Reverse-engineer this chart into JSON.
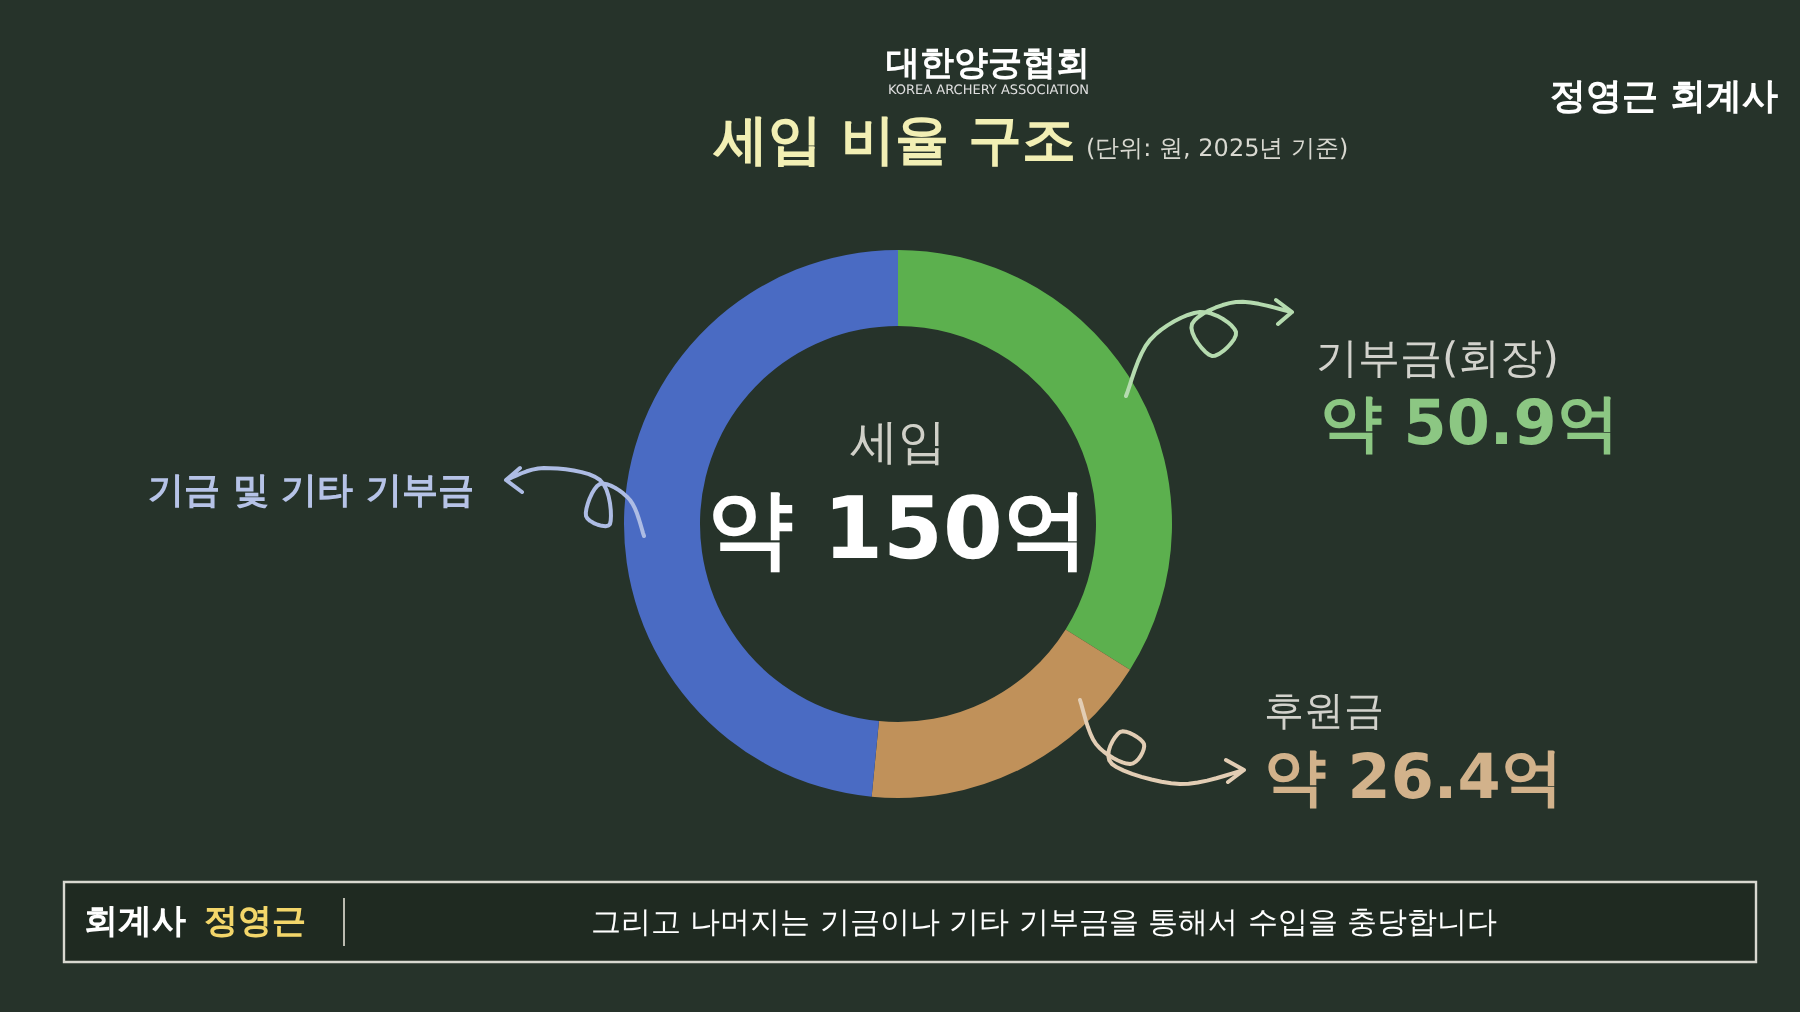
{
  "chart_data": {
    "type": "donut",
    "title": "세입 비율 구조",
    "subtitle": "(단위: 원, 2025년 기준)",
    "categories": [
      "기부금(회장)",
      "후원금",
      "기금 및 기타 기부금"
    ],
    "values": [
      50.9,
      26.4,
      72.7
    ],
    "colors": [
      "#5cb04e",
      "#c0915a",
      "#4a6bc3"
    ],
    "value_labels": [
      "약 50.9억",
      "약 26.4억",
      null
    ],
    "annotations": [
      "대한양궁협회",
      "KOREA ARCHERY ASSOCIATION",
      "정영근 회계사",
      "세입",
      "약 150억",
      "회계사",
      "정영근",
      "그리고 나머지는 기금이나 기타 기부금을 통해서 수입을 충당합니다"
    ]
  }
}
